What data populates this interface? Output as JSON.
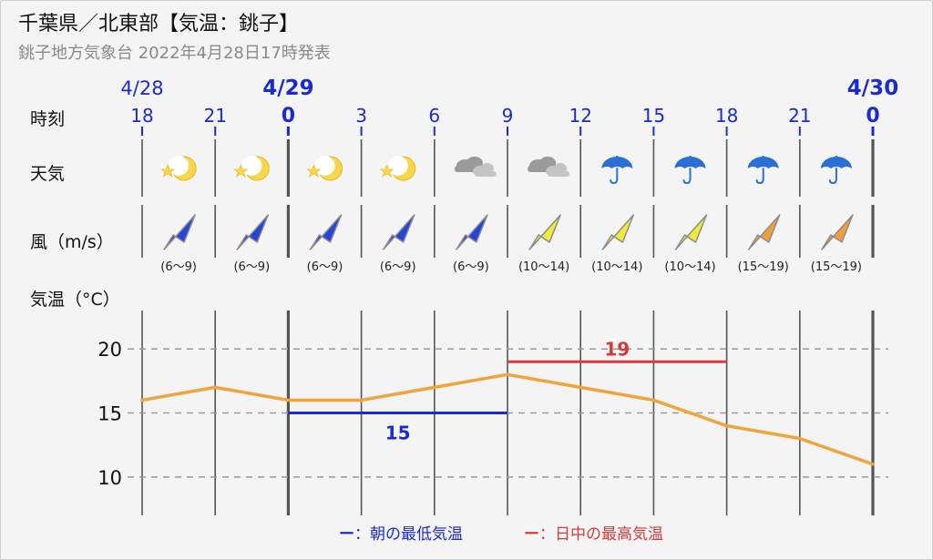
{
  "header": {
    "title": "千葉県／北東部【気温：銚子】",
    "subtitle": "銚子地方気象台 2022年4月28日17時発表"
  },
  "rows": {
    "time_label": "時刻",
    "weather_label": "天気",
    "wind_label": "風（m/s）",
    "temp_label": "気温（°C）"
  },
  "dates": [
    {
      "label": "4/28",
      "col": 0,
      "bold": false
    },
    {
      "label": "4/29",
      "col": 2,
      "bold": true
    },
    {
      "label": "4/30",
      "col": 10,
      "bold": true
    }
  ],
  "hours": [
    "18",
    "21",
    "0",
    "3",
    "6",
    "9",
    "12",
    "15",
    "18",
    "21",
    "0"
  ],
  "day_boundary_cols": [
    2,
    10
  ],
  "weather": [
    "moon-star-icon",
    "moon-star-icon",
    "moon-star-icon",
    "moon-star-icon",
    "cloud-icon",
    "cloud-icon",
    "umbrella-icon",
    "umbrella-icon",
    "umbrella-icon",
    "umbrella-icon"
  ],
  "wind": [
    {
      "range": "(6〜9)",
      "color": "#2446d8",
      "icon": "wind-arrow-icon"
    },
    {
      "range": "(6〜9)",
      "color": "#2446d8",
      "icon": "wind-arrow-icon"
    },
    {
      "range": "(6〜9)",
      "color": "#2446d8",
      "icon": "wind-arrow-icon"
    },
    {
      "range": "(6〜9)",
      "color": "#2446d8",
      "icon": "wind-arrow-icon"
    },
    {
      "range": "(6〜9)",
      "color": "#2446d8",
      "icon": "wind-arrow-icon"
    },
    {
      "range": "(10〜14)",
      "color": "#f2ea3a",
      "icon": "wind-arrow-icon"
    },
    {
      "range": "(10〜14)",
      "color": "#f2ea3a",
      "icon": "wind-arrow-icon"
    },
    {
      "range": "(10〜14)",
      "color": "#f2ea3a",
      "icon": "wind-arrow-icon"
    },
    {
      "range": "(15〜19)",
      "color": "#f0a03a",
      "icon": "wind-arrow-icon"
    },
    {
      "range": "(15〜19)",
      "color": "#f0a03a",
      "icon": "wind-arrow-icon"
    }
  ],
  "colors": {
    "date_label": "#1a2bd1",
    "temp_line": "#f0a43a",
    "min_temp": "#1a2bd1",
    "max_temp": "#d83a3a",
    "grid": "#555555",
    "dashed": "#999999"
  },
  "chart_data": {
    "type": "line",
    "x": [
      "18",
      "21",
      "0",
      "3",
      "6",
      "9",
      "12",
      "15",
      "18",
      "21",
      "0"
    ],
    "series": [
      {
        "values": [
          16,
          17,
          16,
          16,
          17,
          18,
          17,
          16,
          14,
          13,
          11
        ]
      }
    ],
    "yticks": [
      10,
      15,
      20
    ],
    "ylim": [
      7,
      23
    ],
    "grid": true,
    "min_temp": {
      "value": 15,
      "label": "15",
      "from_col": 2,
      "to_col": 5
    },
    "max_temp": {
      "value": 19,
      "label": "19",
      "from_col": 5,
      "to_col": 8
    },
    "legend": [
      {
        "marker": "ー",
        "text": "：朝の最低気温",
        "color": "#1a2bd1"
      },
      {
        "marker": "ー",
        "text": "：日中の最高気温",
        "color": "#d83a3a"
      }
    ],
    "legend_position": "bottom"
  }
}
